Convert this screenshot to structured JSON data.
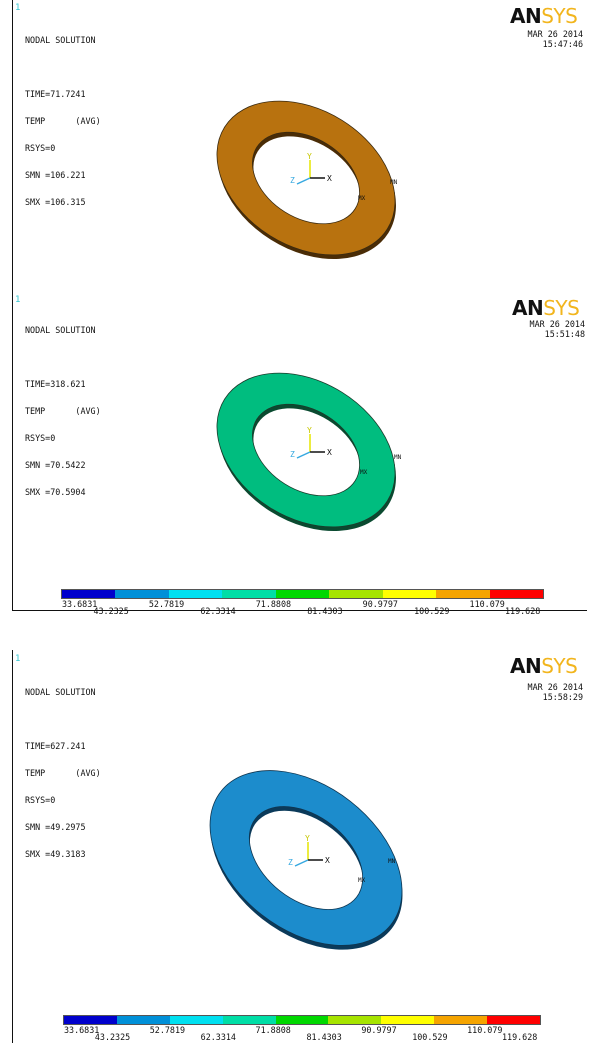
{
  "panels": [
    {
      "window_number": "1",
      "info": [
        "NODAL SOLUTION",
        "",
        "TIME=71.7241",
        "TEMP      (AVG)",
        "RSYS=0",
        "SMN =106.221",
        "SMX =106.315"
      ],
      "logo": {
        "an": "AN",
        "sys": "SYS"
      },
      "date": [
        "MAR 26 2014",
        "15:47:46"
      ],
      "contour_color": "#b8720f",
      "markers": {
        "mn": "MN",
        "mx": "MX"
      },
      "triad": {
        "x": "X",
        "y": "Y",
        "z": "Z"
      }
    },
    {
      "window_number": "1",
      "info": [
        "NODAL SOLUTION",
        "",
        "TIME=318.621",
        "TEMP      (AVG)",
        "RSYS=0",
        "SMN =70.5422",
        "SMX =70.5904"
      ],
      "logo": {
        "an": "AN",
        "sys": "SYS"
      },
      "date": [
        "MAR 26 2014",
        "15:51:48"
      ],
      "contour_color": "#00bd7f",
      "markers": {
        "mn": "MN",
        "mx": "MX"
      },
      "triad": {
        "x": "X",
        "y": "Y",
        "z": "Z"
      }
    },
    {
      "window_number": "1",
      "info": [
        "NODAL SOLUTION",
        "",
        "TIME=627.241",
        "TEMP      (AVG)",
        "RSYS=0",
        "SMN =49.2975",
        "SMX =49.3183"
      ],
      "logo": {
        "an": "AN",
        "sys": "SYS"
      },
      "date": [
        "MAR 26 2014",
        "15:58:29"
      ],
      "contour_color": "#1c8ccc",
      "markers": {
        "mn": "MN",
        "mx": "MX"
      },
      "triad": {
        "x": "X",
        "y": "Y",
        "z": "Z"
      }
    }
  ],
  "legend": {
    "colors": [
      "#0000cc",
      "#0090d8",
      "#00e0f0",
      "#00dea6",
      "#00d800",
      "#a6e400",
      "#ffff00",
      "#f5a400",
      "#ff0000"
    ],
    "labels_top": [
      "33.6831",
      "52.7819",
      "71.8808",
      "90.9797",
      "110.079"
    ],
    "labels_bottom": [
      "43.2325",
      "62.3314",
      "81.4303",
      "100.529",
      "119.628"
    ]
  }
}
